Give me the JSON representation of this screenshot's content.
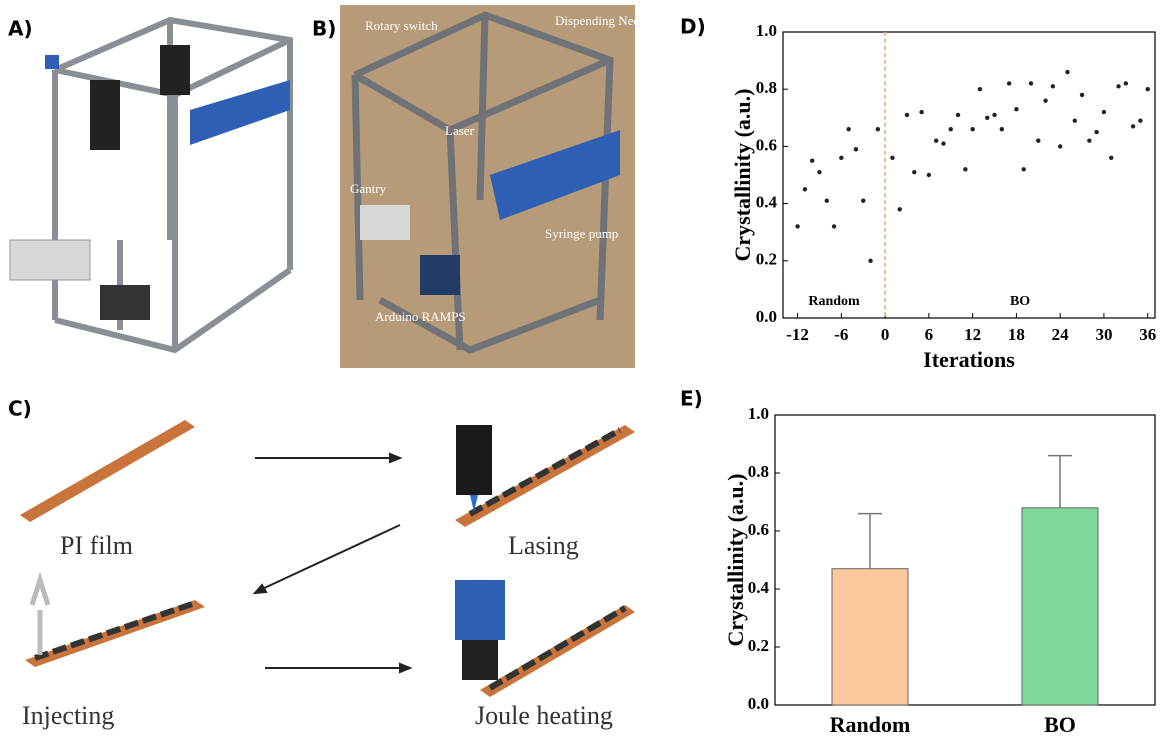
{
  "panel_labels": [
    "A)",
    "B)",
    "C)",
    "D)",
    "E)"
  ],
  "photo_b_labels": [
    "Rotary switch",
    "Dispending Needles",
    "Laser",
    "Gantry",
    "Syringe pump",
    "Arduino RAMPS"
  ],
  "schematic_labels": [
    "PI film",
    "Lasing",
    "Injecting",
    "Joule heating"
  ],
  "chart_data": [
    {
      "type": "scatter",
      "y_label": "Crystallinity (a.u.)",
      "x_label": "Iterations",
      "color": "#222222",
      "x": [
        -12,
        -11,
        -10,
        -9,
        -8,
        -7,
        -6,
        -5,
        -4,
        -3,
        -2,
        -1,
        1,
        2,
        3,
        4,
        5,
        6,
        7,
        8,
        9,
        10,
        11,
        12,
        13,
        14,
        15,
        16,
        17,
        18,
        19,
        20,
        21,
        22,
        23,
        24,
        25,
        26,
        27,
        28,
        29,
        30,
        31,
        32,
        33,
        34,
        35,
        36
      ],
      "values": [
        0.32,
        0.45,
        0.55,
        0.51,
        0.41,
        0.32,
        0.56,
        0.66,
        0.59,
        0.41,
        0.2,
        0.66,
        0.56,
        0.38,
        0.71,
        0.51,
        0.72,
        0.5,
        0.62,
        0.61,
        0.66,
        0.71,
        0.52,
        0.66,
        0.8,
        0.7,
        0.71,
        0.66,
        0.82,
        0.73,
        0.52,
        0.82,
        0.62,
        0.76,
        0.81,
        0.6,
        0.86,
        0.69,
        0.78,
        0.62,
        0.65,
        0.72,
        0.56,
        0.81,
        0.82,
        0.67,
        0.69,
        0.8
      ],
      "xlim": [
        -14,
        37
      ],
      "xticks": [
        -12,
        -6,
        0,
        6,
        12,
        18,
        24,
        30,
        36
      ],
      "ylim": [
        0,
        1
      ],
      "yticks": [
        {
          "value": 0,
          "label": "0.0"
        },
        {
          "value": 0.2,
          "label": "0.2"
        },
        {
          "value": 0.4,
          "label": "0.4"
        },
        {
          "value": 0.6,
          "label": "0.6"
        },
        {
          "value": 0.8,
          "label": "0.8"
        },
        {
          "value": 1,
          "label": "1.0"
        }
      ],
      "vline": {
        "x": 0,
        "color": "#f4a460"
      },
      "annotations": [
        "Random",
        "BO"
      ]
    },
    {
      "type": "bar",
      "y_label": "Crystallinity (a.u.)",
      "categories": [
        "Random",
        "BO"
      ],
      "values": [
        0.47,
        0.68
      ],
      "errors": [
        0.19,
        0.18
      ],
      "colors": [
        "#fcc89b",
        "#7dd89a"
      ],
      "ylim": [
        0,
        1
      ],
      "yticks": [
        {
          "value": 0,
          "label": "0.0"
        },
        {
          "value": 0.2,
          "label": "0.2"
        },
        {
          "value": 0.4,
          "label": "0.4"
        },
        {
          "value": 0.6,
          "label": "0.6"
        },
        {
          "value": 0.8,
          "label": "0.8"
        },
        {
          "value": 1,
          "label": "1.0"
        }
      ]
    }
  ]
}
